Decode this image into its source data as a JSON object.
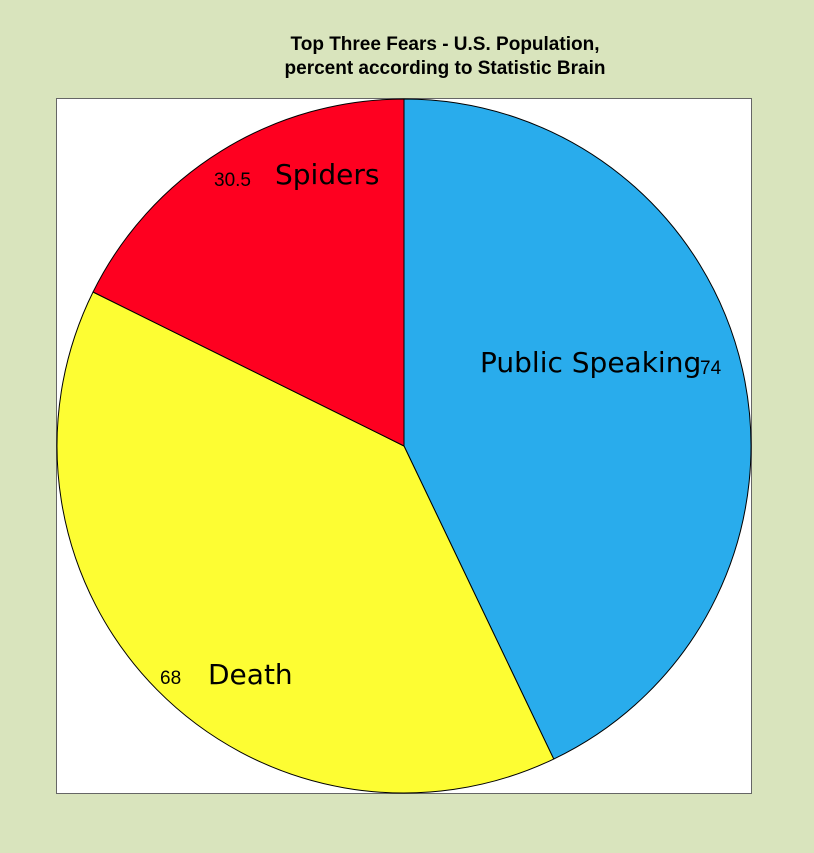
{
  "page": {
    "background": "#d9e4bd"
  },
  "chart_data": {
    "type": "pie",
    "title_line1": "Top Three Fears - U.S. Population,",
    "title_line2": "percent according to Statistic Brain",
    "slices": [
      {
        "label": "Public Speaking",
        "value": 74,
        "value_text": "74",
        "color": "#29acec"
      },
      {
        "label": "Death",
        "value": 68,
        "value_text": "68",
        "color": "#fdfd33"
      },
      {
        "label": "Spiders",
        "value": 30.5,
        "value_text": "30.5",
        "color": "#fe0020"
      }
    ],
    "start": "12 o'clock",
    "direction": "clockwise",
    "legend": "none",
    "grid": false,
    "plot_background": "#ffffff",
    "outline_color": "#000000"
  }
}
